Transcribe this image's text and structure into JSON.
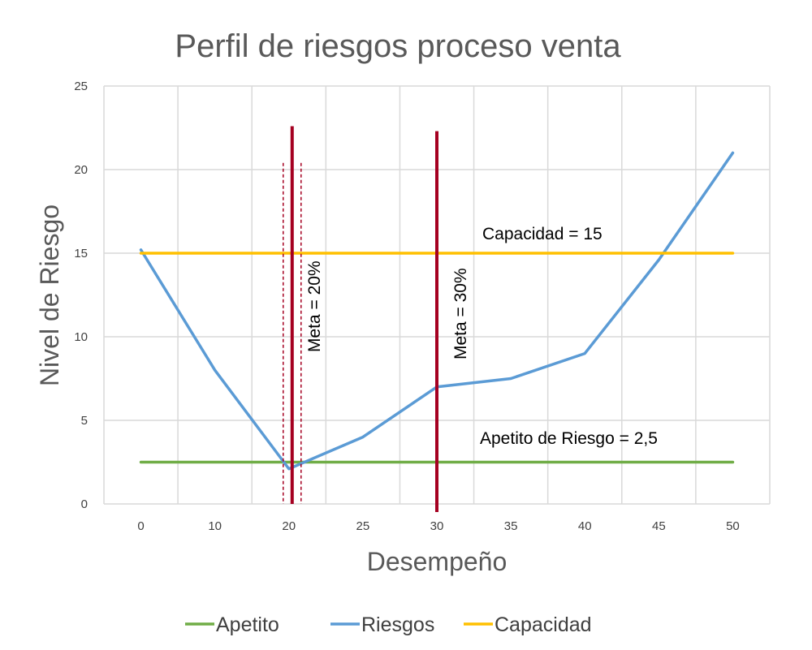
{
  "chart_data": {
    "type": "line",
    "title": "Perfil de riesgos proceso venta",
    "xlabel": "Desempeño",
    "ylabel": "Nivel de Riesgo",
    "categories": [
      "0",
      "10",
      "20",
      "25",
      "30",
      "35",
      "40",
      "45",
      "50"
    ],
    "ylim": [
      0,
      25
    ],
    "yticks": [
      0,
      5,
      10,
      15,
      20,
      25
    ],
    "grid": true,
    "legend_position": "bottom",
    "series": [
      {
        "name": "Apetito",
        "color": "#70AD47",
        "values": [
          2.5,
          2.5,
          2.5,
          2.5,
          2.5,
          2.5,
          2.5,
          2.5,
          2.5
        ]
      },
      {
        "name": "Riesgos",
        "color": "#5B9BD5",
        "values": [
          15.2,
          8,
          2.1,
          4,
          7,
          7.5,
          9,
          14.6,
          21
        ]
      },
      {
        "name": "Capacidad",
        "color": "#FFC000",
        "values": [
          15,
          15,
          15,
          15,
          15,
          15,
          15,
          15,
          15
        ]
      }
    ],
    "annotations": {
      "capacidad": "Capacidad = 15",
      "apetito": "Apetito de Riesgo = 2,5",
      "meta20": "Meta = 20%",
      "meta30": "Meta = 30%"
    },
    "meta_line_color": "#A50021"
  }
}
